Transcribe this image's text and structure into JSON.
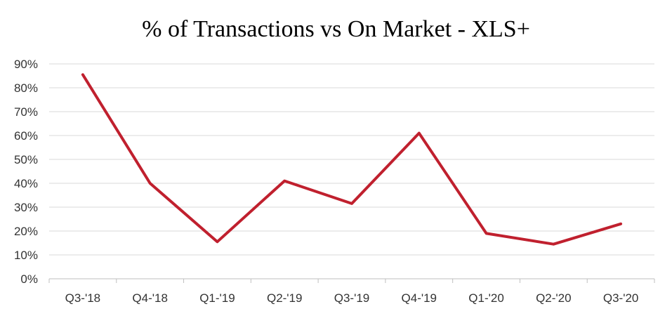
{
  "chart_data": {
    "type": "line",
    "title": "% of Transactions vs On Market - XLS+",
    "xlabel": "",
    "ylabel": "",
    "categories": [
      "Q3-'18",
      "Q4-'18",
      "Q1-'19",
      "Q2-'19",
      "Q3-'19",
      "Q4-'19",
      "Q1-'20",
      "Q2-'20",
      "Q3-'20"
    ],
    "series": [
      {
        "values": [
          0.855,
          0.4,
          0.155,
          0.41,
          0.315,
          0.61,
          0.19,
          0.145,
          0.23
        ],
        "color": "#c0202e"
      }
    ],
    "ylim": [
      0,
      0.9
    ],
    "y_ticks": [
      {
        "value": 0.0,
        "label": "0%"
      },
      {
        "value": 0.1,
        "label": "10%"
      },
      {
        "value": 0.2,
        "label": "20%"
      },
      {
        "value": 0.3,
        "label": "30%"
      },
      {
        "value": 0.4,
        "label": "40%"
      },
      {
        "value": 0.5,
        "label": "50%"
      },
      {
        "value": 0.6,
        "label": "60%"
      },
      {
        "value": 0.7,
        "label": "70%"
      },
      {
        "value": 0.8,
        "label": "80%"
      },
      {
        "value": 0.9,
        "label": "90%"
      }
    ],
    "grid": true,
    "legend": "none"
  }
}
